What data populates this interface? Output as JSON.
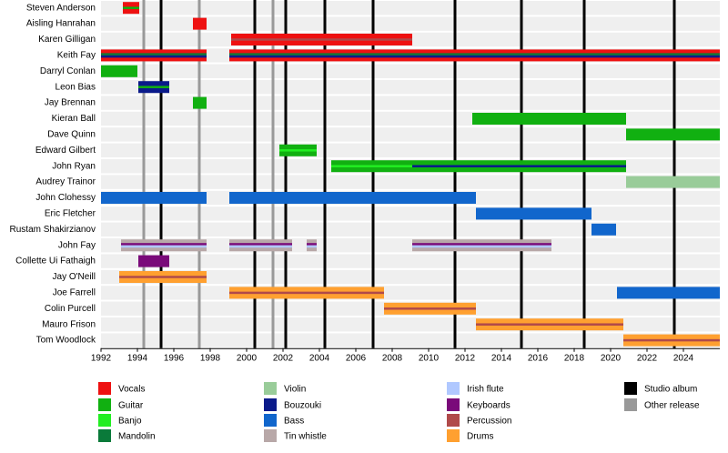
{
  "chart_data": {
    "type": "timeline",
    "xlim": [
      1992,
      2026
    ],
    "xticks": [
      1992,
      1994,
      1996,
      1998,
      2000,
      2002,
      2004,
      2006,
      2008,
      2010,
      2012,
      2014,
      2016,
      2018,
      2020,
      2022,
      2024
    ],
    "roles": [
      {
        "name": "Vocals",
        "color": "#ee1111"
      },
      {
        "name": "Guitar",
        "color": "#11b011"
      },
      {
        "name": "Banjo",
        "color": "#22ee22"
      },
      {
        "name": "Mandolin",
        "color": "#0a7a3a"
      },
      {
        "name": "Violin",
        "color": "#99cc99"
      },
      {
        "name": "Bouzouki",
        "color": "#0a1a8a"
      },
      {
        "name": "Bass",
        "color": "#1166cc"
      },
      {
        "name": "Tin whistle",
        "color": "#b8a8a8"
      },
      {
        "name": "Irish flute",
        "color": "#b0c8ff"
      },
      {
        "name": "Keyboards",
        "color": "#7a0a7a"
      },
      {
        "name": "Percussion",
        "color": "#b04a4a"
      },
      {
        "name": "Drums",
        "color": "#ffa030"
      }
    ],
    "events": [
      {
        "name": "Studio album",
        "color": "#000000",
        "years": [
          1995.3,
          2000.45,
          2002.15,
          2004.3,
          2006.95,
          2011.45,
          2015.1,
          2018.55,
          2023.5
        ]
      },
      {
        "name": "Other release",
        "color": "#999999",
        "years": [
          1994.35,
          1997.4,
          2001.45
        ]
      }
    ],
    "members": [
      {
        "name": "Steven Anderson",
        "periods": [
          {
            "start": 1993.2,
            "end": 1994.1,
            "roles": [
              "Vocals",
              "Guitar"
            ]
          }
        ]
      },
      {
        "name": "Aisling Hanrahan",
        "periods": [
          {
            "start": 1997.05,
            "end": 1997.8,
            "roles": [
              "Vocals"
            ]
          }
        ]
      },
      {
        "name": "Karen Gilligan",
        "periods": [
          {
            "start": 1999.15,
            "end": 2009.1,
            "roles": [
              "Vocals",
              "Percussion"
            ]
          }
        ]
      },
      {
        "name": "Keith Fay",
        "periods": [
          {
            "start": 1992,
            "end": 1997.8,
            "roles": [
              "Vocals",
              "Mandolin",
              "Bouzouki"
            ]
          },
          {
            "start": 1999.05,
            "end": 2026,
            "roles": [
              "Vocals",
              "Mandolin",
              "Bouzouki"
            ]
          }
        ]
      },
      {
        "name": "Darryl Conlan",
        "periods": [
          {
            "start": 1992,
            "end": 1994,
            "roles": [
              "Guitar"
            ]
          }
        ]
      },
      {
        "name": "Leon Bias",
        "periods": [
          {
            "start": 1994.05,
            "end": 1995.75,
            "roles": [
              "Bouzouki",
              "Guitar"
            ]
          }
        ]
      },
      {
        "name": "Jay Brennan",
        "periods": [
          {
            "start": 1997.05,
            "end": 1997.8,
            "roles": [
              "Guitar"
            ]
          }
        ]
      },
      {
        "name": "Kieran Ball",
        "periods": [
          {
            "start": 2012.4,
            "end": 2020.85,
            "roles": [
              "Guitar"
            ]
          }
        ]
      },
      {
        "name": "Dave Quinn",
        "periods": [
          {
            "start": 2020.85,
            "end": 2026,
            "roles": [
              "Guitar"
            ]
          }
        ]
      },
      {
        "name": "Edward Gilbert",
        "periods": [
          {
            "start": 2001.8,
            "end": 2003.85,
            "roles": [
              "Guitar",
              "Banjo"
            ]
          }
        ]
      },
      {
        "name": "John Ryan",
        "periods": [
          {
            "start": 2004.65,
            "end": 2009.1,
            "roles": [
              "Guitar",
              "Banjo"
            ]
          },
          {
            "start": 2009.1,
            "end": 2020.85,
            "roles": [
              "Guitar",
              "Bouzouki"
            ]
          }
        ]
      },
      {
        "name": "Audrey Trainor",
        "periods": [
          {
            "start": 2020.85,
            "end": 2026,
            "roles": [
              "Violin"
            ]
          }
        ]
      },
      {
        "name": "John Clohessy",
        "periods": [
          {
            "start": 1992,
            "end": 1997.8,
            "roles": [
              "Bass"
            ]
          },
          {
            "start": 1999.05,
            "end": 2012.6,
            "roles": [
              "Bass"
            ]
          }
        ]
      },
      {
        "name": "Eric Fletcher",
        "periods": [
          {
            "start": 2012.6,
            "end": 2018.95,
            "roles": [
              "Bass"
            ]
          }
        ]
      },
      {
        "name": "Rustam Shakirzianov",
        "periods": [
          {
            "start": 2018.95,
            "end": 2020.3,
            "roles": [
              "Bass"
            ]
          }
        ]
      },
      {
        "name": "John Fay",
        "periods": [
          {
            "start": 1993.1,
            "end": 1997.8,
            "roles": [
              "Tin whistle",
              "Keyboards",
              "Irish flute"
            ]
          },
          {
            "start": 1999.05,
            "end": 2002.5,
            "roles": [
              "Tin whistle",
              "Keyboards",
              "Irish flute"
            ]
          },
          {
            "start": 2003.3,
            "end": 2003.85,
            "roles": [
              "Tin whistle",
              "Keyboards",
              "Irish flute"
            ]
          },
          {
            "start": 2009.1,
            "end": 2016.75,
            "roles": [
              "Tin whistle",
              "Keyboards",
              "Irish flute"
            ]
          }
        ]
      },
      {
        "name": "Collette Ui Fathaigh",
        "periods": [
          {
            "start": 1994.05,
            "end": 1995.75,
            "roles": [
              "Keyboards"
            ]
          }
        ]
      },
      {
        "name": "Jay O'Neill",
        "periods": [
          {
            "start": 1993,
            "end": 1997.8,
            "roles": [
              "Drums",
              "Percussion"
            ]
          }
        ]
      },
      {
        "name": "Joe Farrell",
        "periods": [
          {
            "start": 1999.05,
            "end": 2007.55,
            "roles": [
              "Drums",
              "Percussion"
            ]
          },
          {
            "start": 2020.35,
            "end": 2026,
            "roles": [
              "Bass"
            ]
          }
        ]
      },
      {
        "name": "Colin Purcell",
        "periods": [
          {
            "start": 2007.55,
            "end": 2012.6,
            "roles": [
              "Drums",
              "Percussion"
            ]
          }
        ]
      },
      {
        "name": "Mauro Frison",
        "periods": [
          {
            "start": 2012.6,
            "end": 2020.7,
            "roles": [
              "Drums",
              "Percussion"
            ]
          }
        ]
      },
      {
        "name": "Tom Woodlock",
        "periods": [
          {
            "start": 2020.7,
            "end": 2026,
            "roles": [
              "Drums",
              "Percussion"
            ]
          }
        ]
      }
    ]
  }
}
